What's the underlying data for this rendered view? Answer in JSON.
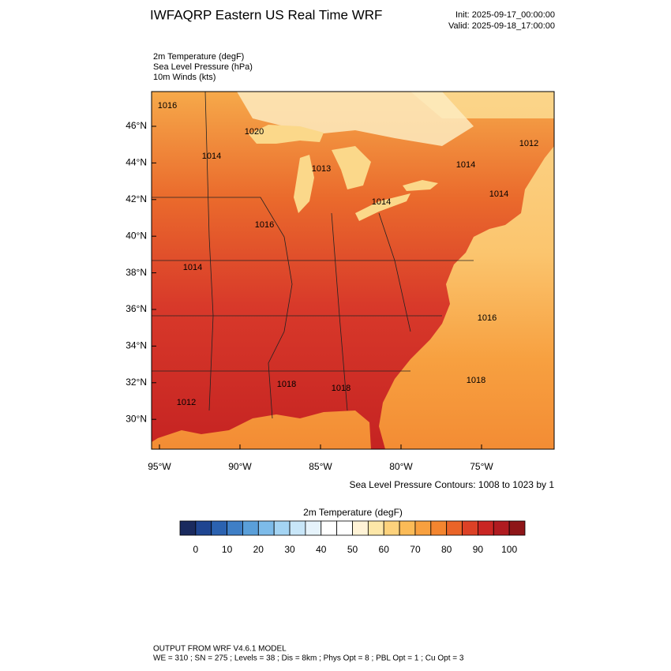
{
  "header": {
    "title": "IWFAQRP Eastern US Real Time WRF",
    "init": "Init: 2025-09-17_00:00:00",
    "valid": "Valid: 2025-09-18_17:00:00",
    "fields": [
      "2m Temperature   (degF)",
      "Sea Level Pressure   (hPa)",
      "10m Winds   (kts)"
    ]
  },
  "map": {
    "lat_labels": [
      "46°N",
      "44°N",
      "42°N",
      "40°N",
      "38°N",
      "36°N",
      "34°N",
      "32°N",
      "30°N"
    ],
    "lon_labels": [
      "95°W",
      "90°W",
      "85°W",
      "80°W",
      "75°W"
    ],
    "contour_labels": [
      "1016",
      "1020",
      "1014",
      "1013",
      "1014",
      "1012",
      "1014",
      "1014",
      "1016",
      "1014",
      "1016",
      "1018",
      "1018",
      "1018",
      "1012"
    ],
    "contour_note": "Sea Level Pressure Contours: 1008 to 1023 by 1"
  },
  "colorbar": {
    "title": "2m Temperature  (degF)",
    "colors": [
      "#1a2a5e",
      "#1f4591",
      "#2b62b0",
      "#3f7fc6",
      "#5a9fd9",
      "#7dbbe9",
      "#a4d4f3",
      "#c8e6f8",
      "#e6f3fb",
      "#ffffff",
      "#ffffff",
      "#fff3d6",
      "#fde7a8",
      "#fdd27c",
      "#fbbb57",
      "#f8a03f",
      "#f3852f",
      "#ea6428",
      "#dc4126",
      "#c92623",
      "#b01b20",
      "#8e1518"
    ],
    "ticks": [
      0,
      10,
      20,
      30,
      40,
      50,
      60,
      70,
      80,
      90,
      100
    ]
  },
  "footer": {
    "line1": "OUTPUT FROM WRF V4.6.1 MODEL",
    "line2": "WE = 310 ; SN = 275 ; Levels = 38 ; Dis = 8km ; Phys Opt = 8 ; PBL Opt = 1 ; Cu Opt = 3"
  }
}
